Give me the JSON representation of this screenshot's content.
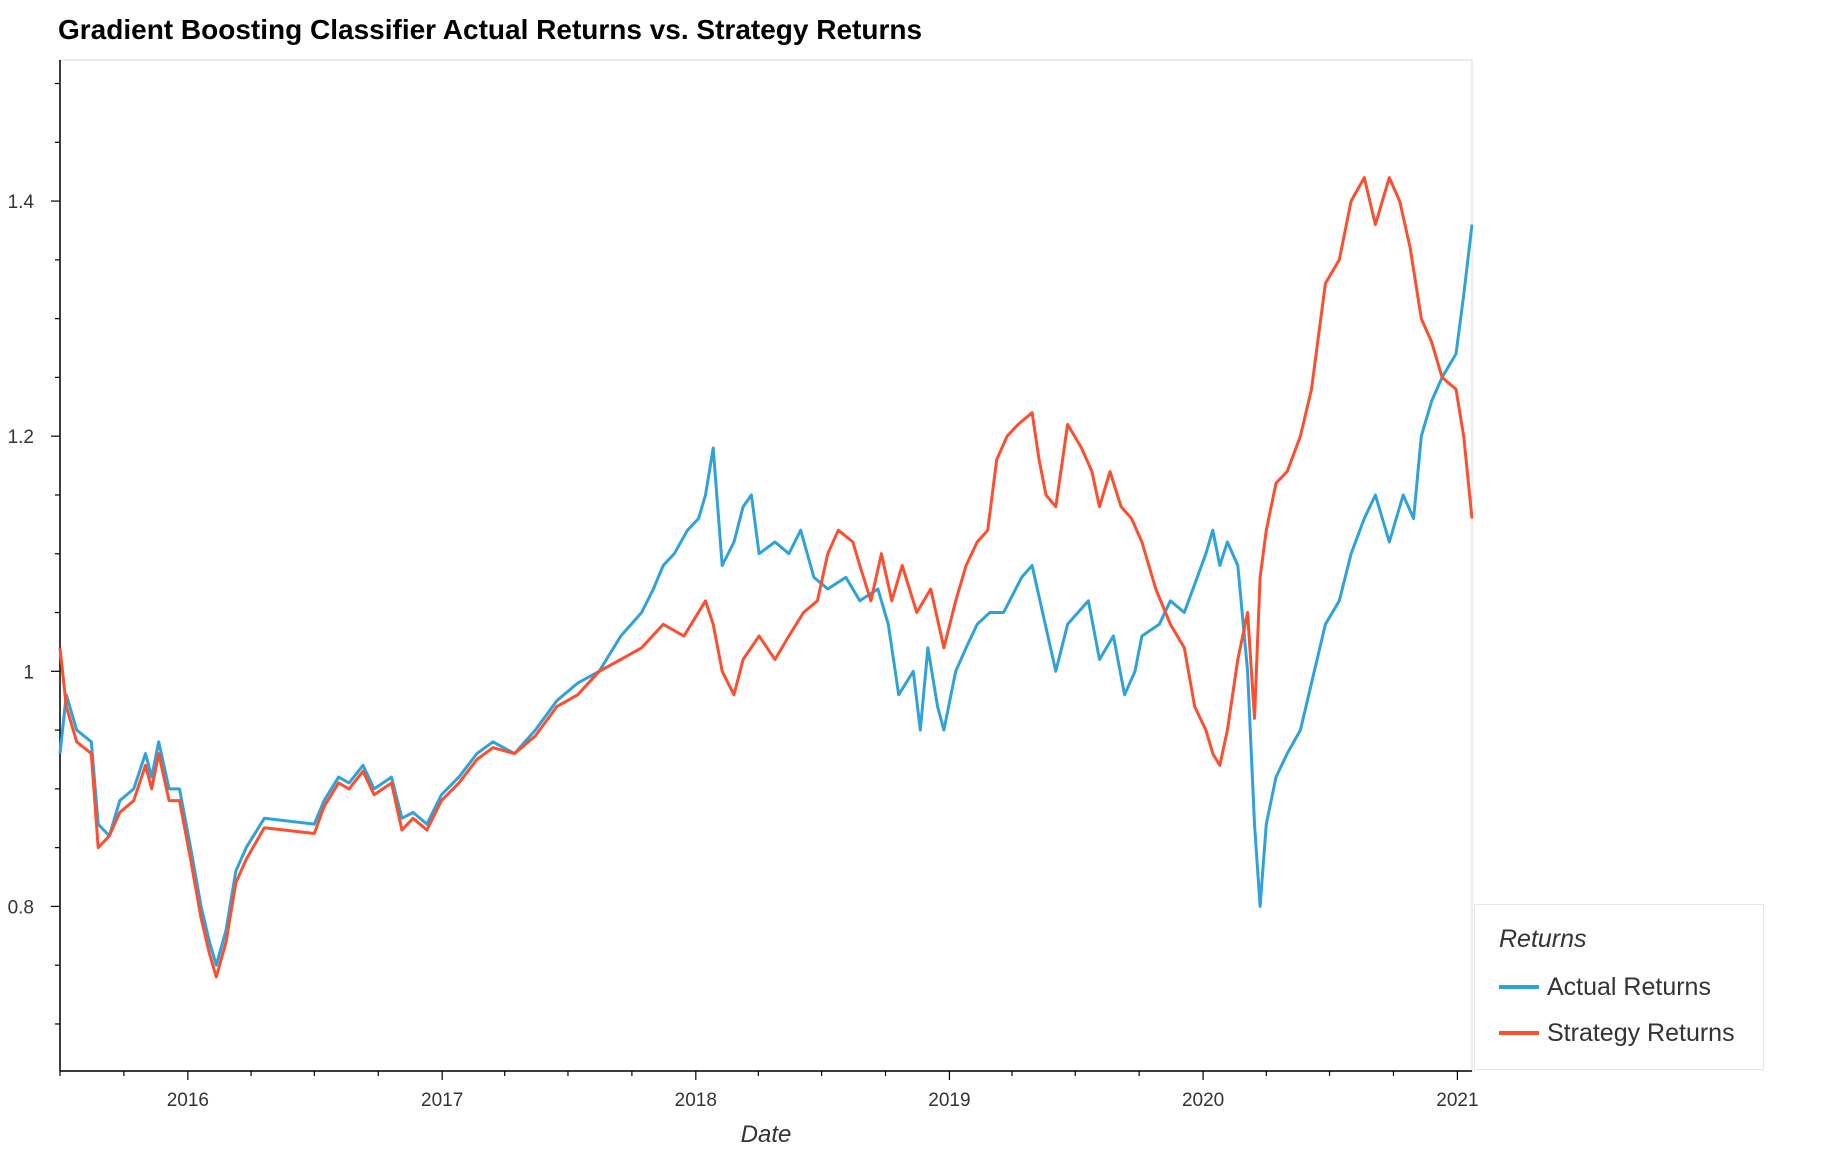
{
  "chart_data": {
    "type": "line",
    "title": "Gradient Boosting Classifier Actual Returns vs. Strategy Returns",
    "xlabel": "Date",
    "ylabel": "",
    "x_ticks": [
      "2016",
      "2017",
      "2018",
      "2019",
      "2020",
      "2021"
    ],
    "y_ticks": [
      "0.8",
      "1",
      "1.2",
      "1.4"
    ],
    "xlim": [
      "2015-07-01",
      "2021-01-22"
    ],
    "ylim": [
      0.66,
      1.52
    ],
    "grid": false,
    "legend": {
      "title": "Returns",
      "placement": "bottom-right, outside plot"
    },
    "series": [
      {
        "name": "Actual Returns",
        "color": "#30a2da",
        "points": [
          [
            "2015-07-01",
            0.93
          ],
          [
            "2015-07-10",
            0.98
          ],
          [
            "2015-07-25",
            0.95
          ],
          [
            "2015-08-15",
            0.94
          ],
          [
            "2015-08-25",
            0.87
          ],
          [
            "2015-09-10",
            0.86
          ],
          [
            "2015-09-25",
            0.89
          ],
          [
            "2015-10-15",
            0.9
          ],
          [
            "2015-11-01",
            0.93
          ],
          [
            "2015-11-10",
            0.91
          ],
          [
            "2015-11-20",
            0.94
          ],
          [
            "2015-12-05",
            0.9
          ],
          [
            "2015-12-20",
            0.9
          ],
          [
            "2016-01-05",
            0.85
          ],
          [
            "2016-01-20",
            0.8
          ],
          [
            "2016-02-01",
            0.77
          ],
          [
            "2016-02-11",
            0.75
          ],
          [
            "2016-02-25",
            0.78
          ],
          [
            "2016-03-10",
            0.83
          ],
          [
            "2016-03-25",
            0.85
          ],
          [
            "2016-04-20",
            0.875
          ],
          [
            "2016-07-01",
            0.87
          ],
          [
            "2016-07-15",
            0.89
          ],
          [
            "2016-08-05",
            0.91
          ],
          [
            "2016-08-20",
            0.905
          ],
          [
            "2016-09-09",
            0.92
          ],
          [
            "2016-09-25",
            0.9
          ],
          [
            "2016-10-20",
            0.91
          ],
          [
            "2016-11-04",
            0.875
          ],
          [
            "2016-11-20",
            0.88
          ],
          [
            "2016-12-10",
            0.87
          ],
          [
            "2016-12-31",
            0.895
          ],
          [
            "2017-01-25",
            0.91
          ],
          [
            "2017-02-20",
            0.93
          ],
          [
            "2017-03-15",
            0.94
          ],
          [
            "2017-04-15",
            0.93
          ],
          [
            "2017-05-15",
            0.95
          ],
          [
            "2017-06-15",
            0.975
          ],
          [
            "2017-07-15",
            0.99
          ],
          [
            "2017-08-15",
            1.0
          ],
          [
            "2017-09-15",
            1.03
          ],
          [
            "2017-10-15",
            1.05
          ],
          [
            "2017-11-01",
            1.07
          ],
          [
            "2017-11-15",
            1.09
          ],
          [
            "2017-12-01",
            1.1
          ],
          [
            "2017-12-20",
            1.12
          ],
          [
            "2018-01-05",
            1.13
          ],
          [
            "2018-01-15",
            1.15
          ],
          [
            "2018-01-26",
            1.19
          ],
          [
            "2018-02-08",
            1.09
          ],
          [
            "2018-02-25",
            1.11
          ],
          [
            "2018-03-10",
            1.14
          ],
          [
            "2018-03-22",
            1.15
          ],
          [
            "2018-04-02",
            1.1
          ],
          [
            "2018-04-25",
            1.11
          ],
          [
            "2018-05-15",
            1.1
          ],
          [
            "2018-06-01",
            1.12
          ],
          [
            "2018-06-20",
            1.08
          ],
          [
            "2018-07-10",
            1.07
          ],
          [
            "2018-08-05",
            1.08
          ],
          [
            "2018-08-25",
            1.06
          ],
          [
            "2018-09-20",
            1.07
          ],
          [
            "2018-10-05",
            1.04
          ],
          [
            "2018-10-20",
            0.98
          ],
          [
            "2018-11-10",
            1.0
          ],
          [
            "2018-11-20",
            0.95
          ],
          [
            "2018-12-01",
            1.02
          ],
          [
            "2018-12-15",
            0.97
          ],
          [
            "2018-12-24",
            0.95
          ],
          [
            "2019-01-10",
            1.0
          ],
          [
            "2019-01-25",
            1.02
          ],
          [
            "2019-02-10",
            1.04
          ],
          [
            "2019-02-28",
            1.05
          ],
          [
            "2019-03-20",
            1.05
          ],
          [
            "2019-04-15",
            1.08
          ],
          [
            "2019-04-30",
            1.09
          ],
          [
            "2019-05-15",
            1.05
          ],
          [
            "2019-06-03",
            1.0
          ],
          [
            "2019-06-20",
            1.04
          ],
          [
            "2019-07-20",
            1.06
          ],
          [
            "2019-08-05",
            1.01
          ],
          [
            "2019-08-25",
            1.03
          ],
          [
            "2019-09-10",
            0.98
          ],
          [
            "2019-09-25",
            1.0
          ],
          [
            "2019-10-05",
            1.03
          ],
          [
            "2019-10-30",
            1.04
          ],
          [
            "2019-11-15",
            1.06
          ],
          [
            "2019-12-05",
            1.05
          ],
          [
            "2020-01-05",
            1.1
          ],
          [
            "2020-01-15",
            1.12
          ],
          [
            "2020-01-25",
            1.09
          ],
          [
            "2020-02-05",
            1.11
          ],
          [
            "2020-02-20",
            1.09
          ],
          [
            "2020-03-05",
            1.0
          ],
          [
            "2020-03-15",
            0.87
          ],
          [
            "2020-03-23",
            0.8
          ],
          [
            "2020-04-01",
            0.87
          ],
          [
            "2020-04-15",
            0.91
          ],
          [
            "2020-05-01",
            0.93
          ],
          [
            "2020-05-20",
            0.95
          ],
          [
            "2020-06-05",
            0.99
          ],
          [
            "2020-06-25",
            1.04
          ],
          [
            "2020-07-15",
            1.06
          ],
          [
            "2020-08-01",
            1.1
          ],
          [
            "2020-08-20",
            1.13
          ],
          [
            "2020-09-05",
            1.15
          ],
          [
            "2020-09-25",
            1.11
          ],
          [
            "2020-10-15",
            1.15
          ],
          [
            "2020-10-30",
            1.13
          ],
          [
            "2020-11-10",
            1.2
          ],
          [
            "2020-11-25",
            1.23
          ],
          [
            "2020-12-10",
            1.25
          ],
          [
            "2020-12-30",
            1.27
          ],
          [
            "2021-01-10",
            1.32
          ],
          [
            "2021-01-22",
            1.38
          ]
        ]
      },
      {
        "name": "Strategy Returns",
        "color": "#fc4f30",
        "points": [
          [
            "2015-07-01",
            1.02
          ],
          [
            "2015-07-10",
            0.97
          ],
          [
            "2015-07-25",
            0.94
          ],
          [
            "2015-08-15",
            0.93
          ],
          [
            "2015-08-25",
            0.85
          ],
          [
            "2015-09-10",
            0.86
          ],
          [
            "2015-09-25",
            0.88
          ],
          [
            "2015-10-15",
            0.89
          ],
          [
            "2015-11-01",
            0.92
          ],
          [
            "2015-11-10",
            0.9
          ],
          [
            "2015-11-20",
            0.93
          ],
          [
            "2015-12-05",
            0.89
          ],
          [
            "2015-12-20",
            0.89
          ],
          [
            "2016-01-05",
            0.84
          ],
          [
            "2016-01-20",
            0.79
          ],
          [
            "2016-02-01",
            0.76
          ],
          [
            "2016-02-11",
            0.74
          ],
          [
            "2016-02-25",
            0.77
          ],
          [
            "2016-03-10",
            0.82
          ],
          [
            "2016-03-25",
            0.84
          ],
          [
            "2016-04-20",
            0.867
          ],
          [
            "2016-07-01",
            0.862
          ],
          [
            "2016-07-15",
            0.885
          ],
          [
            "2016-08-05",
            0.905
          ],
          [
            "2016-08-20",
            0.9
          ],
          [
            "2016-09-09",
            0.915
          ],
          [
            "2016-09-25",
            0.895
          ],
          [
            "2016-10-20",
            0.905
          ],
          [
            "2016-11-04",
            0.865
          ],
          [
            "2016-11-20",
            0.875
          ],
          [
            "2016-12-10",
            0.865
          ],
          [
            "2016-12-31",
            0.89
          ],
          [
            "2017-01-25",
            0.905
          ],
          [
            "2017-02-20",
            0.925
          ],
          [
            "2017-03-15",
            0.935
          ],
          [
            "2017-04-15",
            0.93
          ],
          [
            "2017-05-15",
            0.945
          ],
          [
            "2017-06-15",
            0.97
          ],
          [
            "2017-07-15",
            0.98
          ],
          [
            "2017-08-15",
            1.0
          ],
          [
            "2017-09-15",
            1.01
          ],
          [
            "2017-10-15",
            1.02
          ],
          [
            "2017-11-15",
            1.04
          ],
          [
            "2017-12-15",
            1.03
          ],
          [
            "2018-01-15",
            1.06
          ],
          [
            "2018-01-26",
            1.04
          ],
          [
            "2018-02-08",
            1.0
          ],
          [
            "2018-02-25",
            0.98
          ],
          [
            "2018-03-10",
            1.01
          ],
          [
            "2018-04-02",
            1.03
          ],
          [
            "2018-04-25",
            1.01
          ],
          [
            "2018-05-15",
            1.03
          ],
          [
            "2018-06-05",
            1.05
          ],
          [
            "2018-06-25",
            1.06
          ],
          [
            "2018-07-10",
            1.1
          ],
          [
            "2018-07-25",
            1.12
          ],
          [
            "2018-08-15",
            1.11
          ],
          [
            "2018-08-25",
            1.09
          ],
          [
            "2018-09-10",
            1.06
          ],
          [
            "2018-09-25",
            1.1
          ],
          [
            "2018-10-10",
            1.06
          ],
          [
            "2018-10-25",
            1.09
          ],
          [
            "2018-11-15",
            1.05
          ],
          [
            "2018-12-05",
            1.07
          ],
          [
            "2018-12-24",
            1.02
          ],
          [
            "2019-01-10",
            1.06
          ],
          [
            "2019-01-25",
            1.09
          ],
          [
            "2019-02-10",
            1.11
          ],
          [
            "2019-02-25",
            1.12
          ],
          [
            "2019-03-10",
            1.18
          ],
          [
            "2019-03-25",
            1.2
          ],
          [
            "2019-04-10",
            1.21
          ],
          [
            "2019-04-30",
            1.22
          ],
          [
            "2019-05-10",
            1.18
          ],
          [
            "2019-05-20",
            1.15
          ],
          [
            "2019-06-03",
            1.14
          ],
          [
            "2019-06-20",
            1.21
          ],
          [
            "2019-07-10",
            1.19
          ],
          [
            "2019-07-25",
            1.17
          ],
          [
            "2019-08-05",
            1.14
          ],
          [
            "2019-08-20",
            1.17
          ],
          [
            "2019-09-05",
            1.14
          ],
          [
            "2019-09-20",
            1.13
          ],
          [
            "2019-10-05",
            1.11
          ],
          [
            "2019-10-25",
            1.07
          ],
          [
            "2019-11-15",
            1.04
          ],
          [
            "2019-12-05",
            1.02
          ],
          [
            "2019-12-20",
            0.97
          ],
          [
            "2020-01-05",
            0.95
          ],
          [
            "2020-01-15",
            0.93
          ],
          [
            "2020-01-25",
            0.92
          ],
          [
            "2020-02-05",
            0.95
          ],
          [
            "2020-02-20",
            1.01
          ],
          [
            "2020-03-05",
            1.05
          ],
          [
            "2020-03-15",
            0.96
          ],
          [
            "2020-03-23",
            1.08
          ],
          [
            "2020-04-01",
            1.12
          ],
          [
            "2020-04-15",
            1.16
          ],
          [
            "2020-05-01",
            1.17
          ],
          [
            "2020-05-20",
            1.2
          ],
          [
            "2020-06-05",
            1.24
          ],
          [
            "2020-06-25",
            1.33
          ],
          [
            "2020-07-15",
            1.35
          ],
          [
            "2020-08-01",
            1.4
          ],
          [
            "2020-08-20",
            1.42
          ],
          [
            "2020-09-05",
            1.38
          ],
          [
            "2020-09-25",
            1.42
          ],
          [
            "2020-10-10",
            1.4
          ],
          [
            "2020-10-25",
            1.36
          ],
          [
            "2020-11-10",
            1.3
          ],
          [
            "2020-11-25",
            1.28
          ],
          [
            "2020-12-10",
            1.25
          ],
          [
            "2020-12-30",
            1.24
          ],
          [
            "2021-01-10",
            1.2
          ],
          [
            "2021-01-22",
            1.13
          ]
        ]
      }
    ]
  }
}
